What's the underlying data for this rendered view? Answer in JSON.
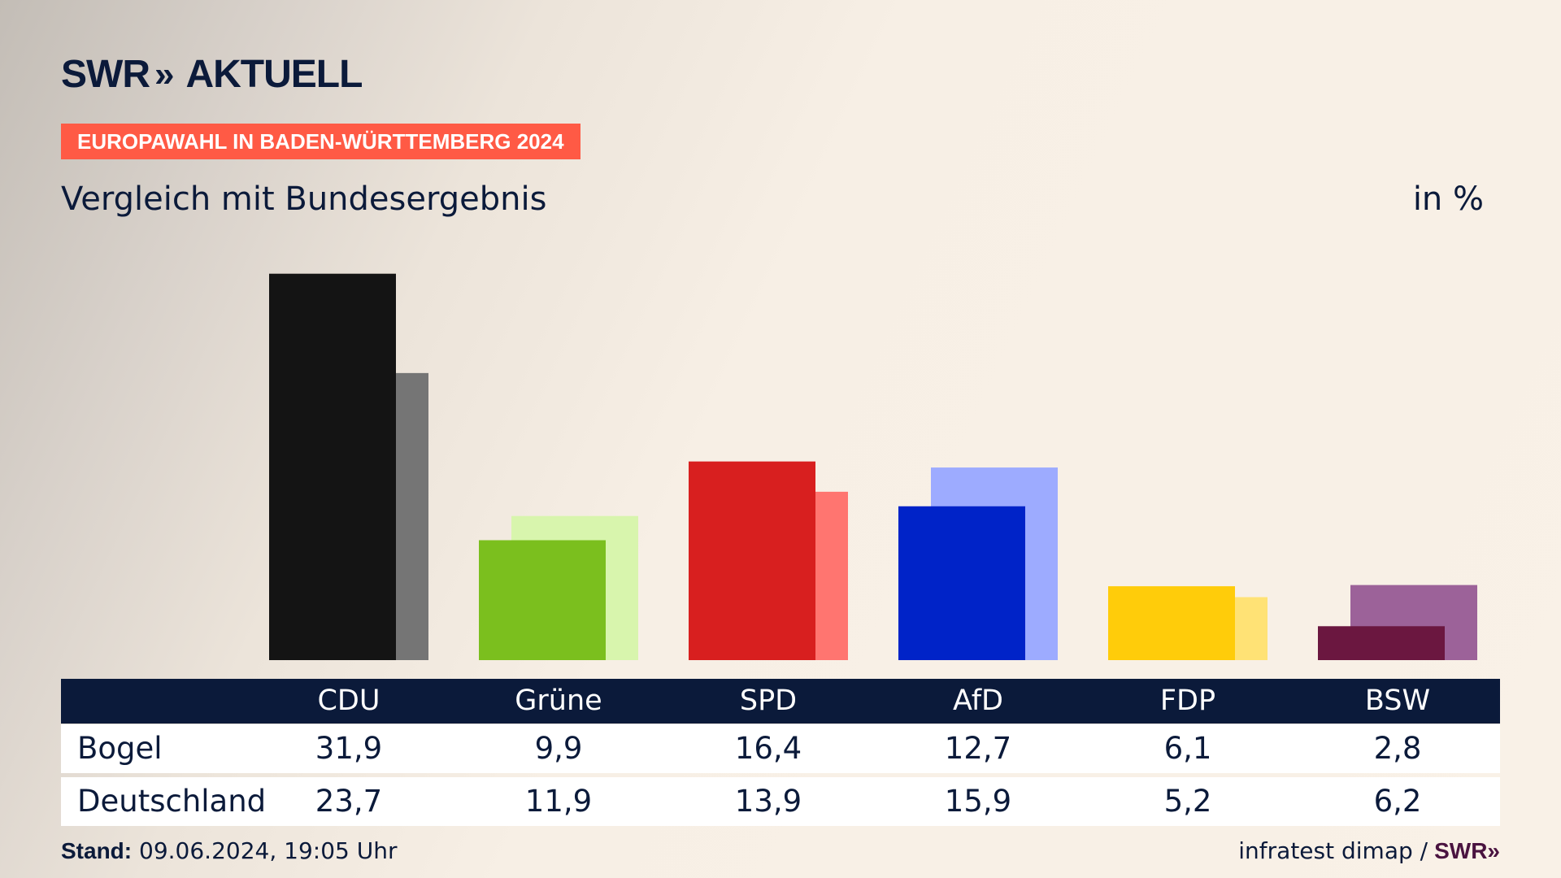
{
  "brand": {
    "logo_main": "SWR",
    "logo_arrows": "»",
    "logo_sub": "AKTUELL"
  },
  "badge": "EUROPAWAHL IN BADEN-WÜRTTEMBERG 2024",
  "subtitle": "Vergleich mit Bundesergebnis",
  "unit": "in %",
  "table": {
    "row_labels": [
      "Bogel",
      "Deutschland"
    ]
  },
  "footer": {
    "stand_label": "Stand:",
    "stand_value": "09.06.2024, 19:05 Uhr",
    "source": "infratest dimap /",
    "source_logo": "SWR»"
  },
  "chart_data": {
    "type": "bar",
    "categories": [
      "CDU",
      "Grüne",
      "SPD",
      "AfD",
      "FDP",
      "BSW"
    ],
    "series": [
      {
        "name": "Bogel",
        "values": [
          31.9,
          9.9,
          16.4,
          12.7,
          6.1,
          2.8
        ]
      },
      {
        "name": "Deutschland",
        "values": [
          23.7,
          11.9,
          13.9,
          15.9,
          5.2,
          6.2
        ]
      }
    ],
    "value_labels": {
      "Bogel": [
        "31,9",
        "9,9",
        "16,4",
        "12,7",
        "6,1",
        "2,8"
      ],
      "Deutschland": [
        "23,7",
        "11,9",
        "13,9",
        "15,9",
        "5,2",
        "6,2"
      ]
    },
    "colors_primary": [
      "#141414",
      "#7bbf1e",
      "#d81f1f",
      "#0023c8",
      "#ffcc0a",
      "#6b1740"
    ],
    "colors_secondary": [
      "#757575",
      "#d8f5ad",
      "#ff7570",
      "#9dabff",
      "#ffe275",
      "#9c6299"
    ],
    "ylim": [
      0,
      32
    ]
  }
}
